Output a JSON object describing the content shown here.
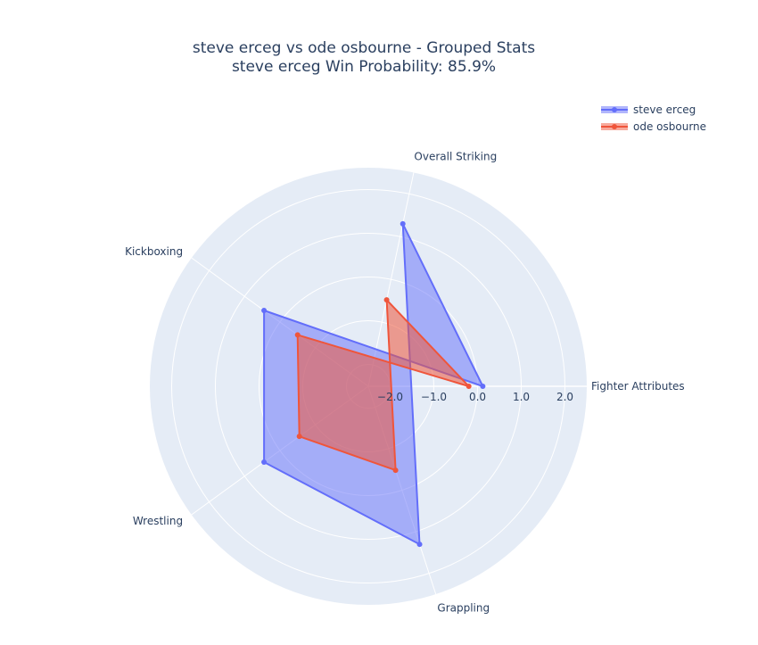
{
  "chart_data": {
    "type": "radar",
    "title": "steve erceg vs ode osbourne - Grouped Stats",
    "subtitle": "steve erceg Win Probability: 85.9%",
    "categories": [
      "Fighter Attributes",
      "Overall Striking",
      "Grappling",
      "Wrestling",
      "Kickboxing"
    ],
    "radial_range": [
      -2.5,
      2.5
    ],
    "radial_ticks": [
      -2.0,
      -1.0,
      0.0,
      1.0,
      2.0
    ],
    "radial_tick_labels": [
      "−2.0",
      "−1.0",
      "0.0",
      "1.0",
      "2.0"
    ],
    "series": [
      {
        "name": "steve erceg",
        "values": [
          0.12,
          1.3,
          1.3,
          0.45,
          0.45
        ],
        "color": "#636efa"
      },
      {
        "name": "ode osbourne",
        "values": [
          -0.2,
          -0.48,
          -0.48,
          -0.55,
          -0.5
        ],
        "color": "#ef553b"
      }
    ],
    "legend_position": "top-right",
    "grid": true
  }
}
